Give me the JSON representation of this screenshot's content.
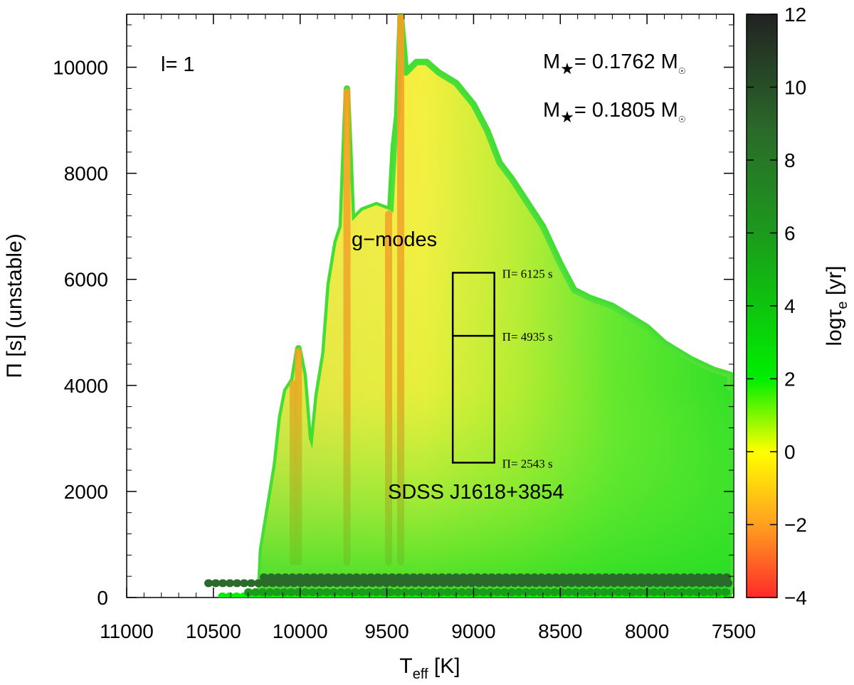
{
  "chart_data": {
    "type": "scatter",
    "xlabel": {
      "main": "T",
      "sub": "eff",
      "rest": " [K]"
    },
    "ylabel": "Π [s] (unstable)",
    "xlim": [
      11000,
      7500
    ],
    "ylim": [
      0,
      11000
    ],
    "x_ticks": [
      11000,
      10500,
      10000,
      9500,
      9000,
      8500,
      8000,
      7500
    ],
    "y_ticks": [
      0,
      2000,
      4000,
      6000,
      8000,
      10000
    ],
    "colorbar": {
      "label": {
        "main": "logτ",
        "sub": "e",
        "rest": " [yr]"
      },
      "range": [
        -4,
        12
      ],
      "ticks": [
        -4,
        -2,
        0,
        2,
        4,
        6,
        8,
        10,
        12
      ],
      "colors": [
        "#ff2a2a",
        "#ffa020",
        "#ffff00",
        "#00ee00",
        "#1c9a1c",
        "#2a6a2a",
        "#222222"
      ]
    },
    "annotations": {
      "degree": "l= 1",
      "mass1": {
        "prefix": "M",
        "star": "★",
        "value": "= 0.1762 M",
        "sun": "☉"
      },
      "mass2": {
        "prefix": "M",
        "star": "★",
        "value": "= 0.1805 M",
        "sun": "☉"
      },
      "modes": "g−modes",
      "object": "SDSS J1618+3854"
    },
    "box": {
      "teff_range": [
        9120,
        8880
      ],
      "periods": [
        {
          "value": 6125,
          "label": "Π= 6125 s"
        },
        {
          "value": 4935,
          "label": "Π= 4935 s"
        },
        {
          "value": 2543,
          "label": "Π= 2543 s"
        }
      ]
    },
    "envelope_outer": [
      [
        10230,
        200
      ],
      [
        10220,
        900
      ],
      [
        10170,
        1900
      ],
      [
        10140,
        2500
      ],
      [
        10110,
        3400
      ],
      [
        10080,
        3900
      ],
      [
        10040,
        4100
      ],
      [
        10010,
        4700
      ],
      [
        9980,
        4200
      ],
      [
        9950,
        3000
      ],
      [
        9930,
        2800
      ],
      [
        9900,
        3800
      ],
      [
        9860,
        4600
      ],
      [
        9830,
        5900
      ],
      [
        9790,
        6700
      ],
      [
        9760,
        7000
      ],
      [
        9730,
        9600
      ],
      [
        9700,
        7100
      ],
      [
        9640,
        7300
      ],
      [
        9560,
        7400
      ],
      [
        9480,
        7300
      ],
      [
        9460,
        8500
      ],
      [
        9440,
        9100
      ],
      [
        9420,
        11000
      ],
      [
        9390,
        9900
      ],
      [
        9330,
        10100
      ],
      [
        9270,
        10100
      ],
      [
        9200,
        9900
      ],
      [
        9100,
        9700
      ],
      [
        9000,
        9300
      ],
      [
        8920,
        8800
      ],
      [
        8850,
        8200
      ],
      [
        8780,
        7900
      ],
      [
        8700,
        7500
      ],
      [
        8600,
        7000
      ],
      [
        8500,
        6300
      ],
      [
        8420,
        5800
      ],
      [
        8330,
        5650
      ],
      [
        8200,
        5500
      ],
      [
        8000,
        5100
      ],
      [
        7900,
        4800
      ],
      [
        7750,
        4500
      ],
      [
        7620,
        4300
      ],
      [
        7520,
        4200
      ],
      [
        7520,
        100
      ]
    ],
    "envelope_inner": [
      [
        10230,
        200
      ],
      [
        10220,
        900
      ],
      [
        10170,
        1900
      ],
      [
        10140,
        2500
      ],
      [
        10110,
        3400
      ],
      [
        10080,
        3900
      ],
      [
        10040,
        4100
      ],
      [
        10010,
        4700
      ],
      [
        9980,
        4200
      ],
      [
        9950,
        3000
      ],
      [
        9930,
        2800
      ],
      [
        9900,
        3800
      ],
      [
        9860,
        4600
      ],
      [
        9830,
        5900
      ],
      [
        9790,
        6700
      ],
      [
        9760,
        7000
      ],
      [
        9730,
        9600
      ],
      [
        9700,
        7100
      ],
      [
        9640,
        7300
      ],
      [
        9560,
        7400
      ],
      [
        9480,
        7300
      ],
      [
        9400,
        7000
      ],
      [
        9300,
        6600
      ],
      [
        9200,
        6300
      ],
      [
        9100,
        6150
      ],
      [
        9000,
        6000
      ],
      [
        8900,
        5800
      ],
      [
        8800,
        5500
      ],
      [
        8600,
        5000
      ],
      [
        8400,
        4700
      ],
      [
        8200,
        4500
      ],
      [
        8000,
        4300
      ],
      [
        7800,
        4100
      ],
      [
        7520,
        3900
      ],
      [
        7520,
        100
      ]
    ],
    "hot_spikes": [
      {
        "teff": 10040,
        "top": 4100
      },
      {
        "teff": 10010,
        "top": 4700
      },
      {
        "teff": 9730,
        "top": 9600
      },
      {
        "teff": 9490,
        "top": 7300
      },
      {
        "teff": 9420,
        "top": 11000
      }
    ],
    "lower_tracks": [
      {
        "teff_start": 10530,
        "period": 270,
        "logtau": 9
      },
      {
        "teff_start": 10450,
        "period": 20,
        "logtau": 3
      },
      {
        "teff_start": 10300,
        "period": 100,
        "logtau": 7
      },
      {
        "teff_start": 10210,
        "period": 380,
        "logtau": 8
      }
    ]
  }
}
